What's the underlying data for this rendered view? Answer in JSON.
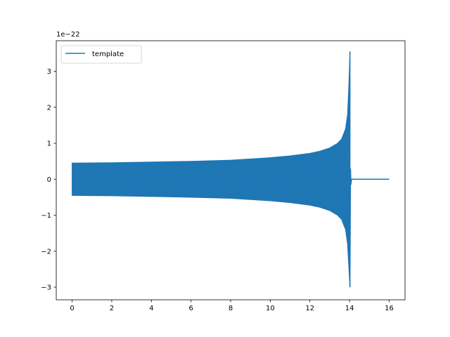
{
  "chart_data": {
    "type": "line",
    "title": "",
    "xlabel": "",
    "ylabel": "",
    "y_offset_text": "1e−22",
    "xlim": [
      -0.8,
      16.8
    ],
    "ylim": [
      -3.35,
      3.85
    ],
    "x_ticks": [
      0,
      2,
      4,
      6,
      8,
      10,
      12,
      14,
      16
    ],
    "x_tick_labels": [
      "0",
      "2",
      "4",
      "6",
      "8",
      "10",
      "12",
      "14",
      "16"
    ],
    "y_ticks": [
      -3,
      -2,
      -1,
      0,
      1,
      2,
      3
    ],
    "y_tick_labels": [
      "−3",
      "−2",
      "−1",
      "0",
      "1",
      "2",
      "3"
    ],
    "grid": false,
    "legend": {
      "position": "top-left",
      "entries": [
        "template"
      ]
    },
    "series": [
      {
        "name": "template",
        "color": "#1f77b4",
        "style": "oscillating chirp envelope",
        "x_start": 0.0,
        "merger_x": 14.0,
        "x_end": 16.0,
        "upper_envelope": [
          [
            0.0,
            0.45
          ],
          [
            2.0,
            0.46
          ],
          [
            4.0,
            0.48
          ],
          [
            6.0,
            0.5
          ],
          [
            8.0,
            0.53
          ],
          [
            10.0,
            0.6
          ],
          [
            11.0,
            0.65
          ],
          [
            12.0,
            0.72
          ],
          [
            12.5,
            0.78
          ],
          [
            13.0,
            0.87
          ],
          [
            13.4,
            1.0
          ],
          [
            13.6,
            1.12
          ],
          [
            13.8,
            1.4
          ],
          [
            13.9,
            1.8
          ],
          [
            13.95,
            2.4
          ],
          [
            13.99,
            3.0
          ],
          [
            14.02,
            3.55
          ]
        ],
        "lower_envelope": [
          [
            0.0,
            -0.45
          ],
          [
            2.0,
            -0.46
          ],
          [
            4.0,
            -0.48
          ],
          [
            6.0,
            -0.5
          ],
          [
            8.0,
            -0.53
          ],
          [
            10.0,
            -0.6
          ],
          [
            11.0,
            -0.65
          ],
          [
            12.0,
            -0.72
          ],
          [
            12.5,
            -0.78
          ],
          [
            13.0,
            -0.87
          ],
          [
            13.4,
            -1.0
          ],
          [
            13.6,
            -1.12
          ],
          [
            13.8,
            -1.4
          ],
          [
            13.9,
            -1.8
          ],
          [
            13.95,
            -2.3
          ],
          [
            13.99,
            -2.7
          ],
          [
            14.02,
            -3.0
          ]
        ],
        "ringdown": [
          [
            14.02,
            -3.0
          ],
          [
            14.05,
            0.3
          ],
          [
            14.07,
            -0.15
          ],
          [
            14.1,
            0.0
          ],
          [
            16.0,
            0.0
          ]
        ]
      }
    ]
  }
}
